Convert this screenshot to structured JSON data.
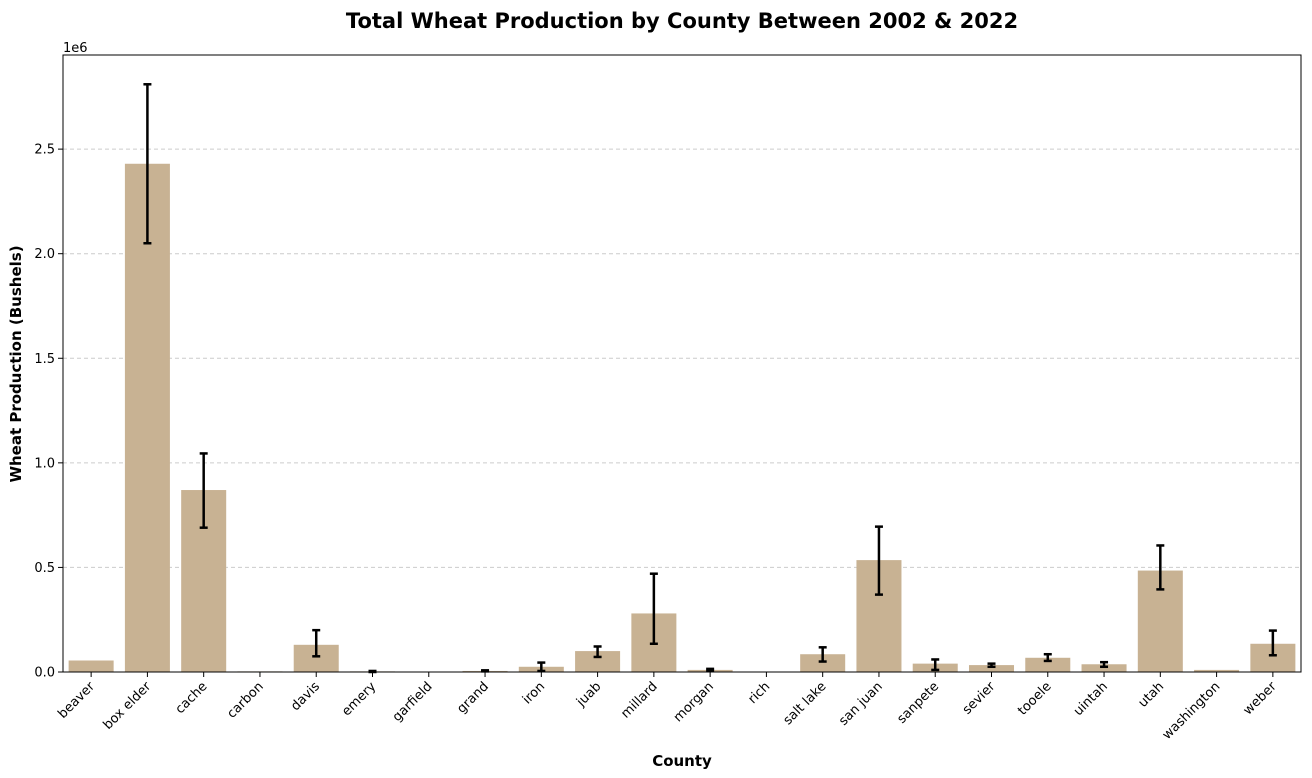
{
  "chart_data": {
    "type": "bar",
    "title": "Total Wheat Production by County Between 2002 & 2022",
    "xlabel": "County",
    "ylabel": "Wheat Production (Bushels)",
    "y_offset_label": "1e6",
    "ylim": [
      0,
      2950000
    ],
    "yticks": [
      0,
      500000,
      1000000,
      1500000,
      2000000,
      2500000
    ],
    "ytick_labels": [
      "0.0",
      "0.5",
      "1.0",
      "1.5",
      "2.0",
      "2.5"
    ],
    "grid": "y dashed",
    "bar_color": "#c8b293",
    "error_bar_color": "#000000",
    "categories": [
      "beaver",
      "box elder",
      "cache",
      "carbon",
      "davis",
      "emery",
      "garfield",
      "grand",
      "iron",
      "juab",
      "millard",
      "morgan",
      "rich",
      "salt lake",
      "san juan",
      "sanpete",
      "sevier",
      "tooele",
      "uintah",
      "utah",
      "washington",
      "weber"
    ],
    "values": [
      55000,
      2430000,
      870000,
      3000,
      130000,
      3000,
      0,
      5000,
      25000,
      100000,
      280000,
      10000,
      2000,
      85000,
      535000,
      40000,
      33000,
      68000,
      37000,
      485000,
      10000,
      135000
    ],
    "error_low": [
      null,
      2050000,
      690000,
      null,
      75000,
      0,
      null,
      3000,
      5000,
      72000,
      135000,
      5000,
      null,
      50000,
      370000,
      10000,
      25000,
      53000,
      25000,
      395000,
      null,
      80000
    ],
    "error_high": [
      null,
      2810000,
      1045000,
      null,
      200000,
      5000,
      null,
      8000,
      45000,
      122000,
      470000,
      15000,
      null,
      118000,
      695000,
      60000,
      40000,
      85000,
      47000,
      605000,
      null,
      198000
    ]
  }
}
